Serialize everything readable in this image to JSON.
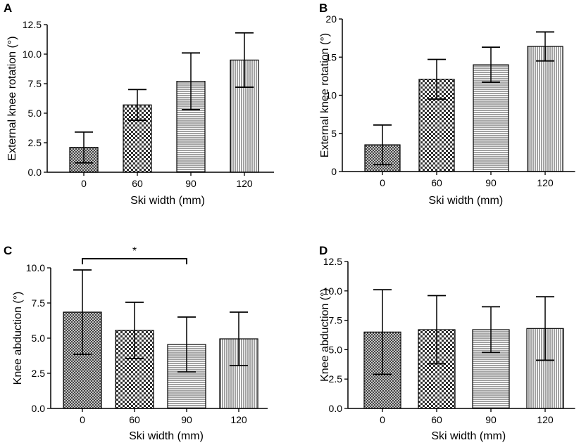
{
  "chart_data": [
    {
      "panel": "A",
      "type": "bar",
      "categories": [
        "0",
        "60",
        "90",
        "120"
      ],
      "values": [
        2.1,
        5.7,
        7.7,
        9.5
      ],
      "errors": [
        1.3,
        1.3,
        2.4,
        2.3
      ],
      "patterns": [
        "crosshatch",
        "checker",
        "horizontal",
        "vertical"
      ],
      "xlabel": "Ski width (mm)",
      "ylabel": "External knee rotation (°)",
      "ylim": [
        0,
        12.5
      ],
      "yticks": [
        "0.0",
        "2.5",
        "5.0",
        "7.5",
        "10.0",
        "12.5"
      ],
      "significance": []
    },
    {
      "panel": "B",
      "type": "bar",
      "categories": [
        "0",
        "60",
        "90",
        "120"
      ],
      "values": [
        3.5,
        12.1,
        14.0,
        16.4
      ],
      "errors": [
        2.6,
        2.6,
        2.3,
        1.9
      ],
      "patterns": [
        "crosshatch",
        "checker",
        "horizontal",
        "vertical"
      ],
      "xlabel": "Ski width (mm)",
      "ylabel": "External knee rotation (°)",
      "ylim": [
        0,
        20
      ],
      "yticks": [
        "0",
        "5",
        "10",
        "15",
        "20"
      ],
      "significance": []
    },
    {
      "panel": "C",
      "type": "bar",
      "categories": [
        "0",
        "60",
        "90",
        "120"
      ],
      "values": [
        6.85,
        5.55,
        4.55,
        4.95
      ],
      "errors": [
        3.0,
        2.0,
        1.95,
        1.9
      ],
      "patterns": [
        "crosshatch",
        "checker",
        "horizontal",
        "vertical"
      ],
      "xlabel": "Ski width (mm)",
      "ylabel": "Knee abduction (°)",
      "ylim": [
        0,
        10
      ],
      "yticks": [
        "0.0",
        "2.5",
        "5.0",
        "7.5",
        "10.0"
      ],
      "significance": [
        {
          "from": 0,
          "to": 2,
          "label": "*",
          "y": 10.65
        }
      ]
    },
    {
      "panel": "D",
      "type": "bar",
      "categories": [
        "0",
        "60",
        "90",
        "120"
      ],
      "values": [
        6.5,
        6.7,
        6.7,
        6.8
      ],
      "errors": [
        3.6,
        2.9,
        1.95,
        2.7
      ],
      "patterns": [
        "crosshatch",
        "checker",
        "horizontal",
        "vertical"
      ],
      "xlabel": "Ski width (mm)",
      "ylabel": "Knee abduction (°)",
      "ylim": [
        0,
        12.5
      ],
      "yticks": [
        "0.0",
        "2.5",
        "5.0",
        "7.5",
        "10.0",
        "12.5"
      ],
      "significance": []
    }
  ]
}
